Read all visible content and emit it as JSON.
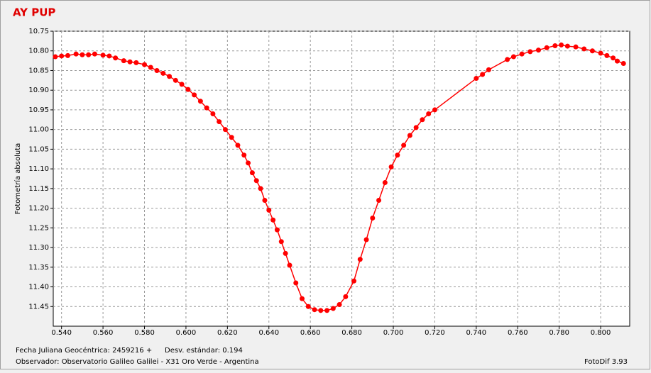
{
  "chart_data": {
    "type": "line",
    "title": "AY PUP",
    "y_label": "Fotometría absoluta",
    "footer_left_1": "Fecha Juliana Geocéntrica: 2459216 +",
    "footer_left_2": "Desv. estándar: 0.194",
    "footer_left_3": "Observador: Observatorio Galileo Galilei - X31 Oro Verde - Argentina",
    "footer_right": "FotoDif 3.93",
    "color": "#ff0000",
    "grid": true,
    "y_inverted": true,
    "xlim": [
      0.536,
      0.814
    ],
    "ylim": [
      10.75,
      11.5
    ],
    "xticks": [
      {
        "value": 0.54,
        "label": "0.540"
      },
      {
        "value": 0.56,
        "label": "0.560"
      },
      {
        "value": 0.58,
        "label": "0.580"
      },
      {
        "value": 0.6,
        "label": "0.600"
      },
      {
        "value": 0.62,
        "label": "0.620"
      },
      {
        "value": 0.64,
        "label": "0.640"
      },
      {
        "value": 0.66,
        "label": "0.660"
      },
      {
        "value": 0.68,
        "label": "0.680"
      },
      {
        "value": 0.7,
        "label": "0.700"
      },
      {
        "value": 0.72,
        "label": "0.720"
      },
      {
        "value": 0.74,
        "label": "0.740"
      },
      {
        "value": 0.76,
        "label": "0.760"
      },
      {
        "value": 0.78,
        "label": "0.780"
      },
      {
        "value": 0.8,
        "label": "0.800"
      }
    ],
    "yticks": [
      {
        "value": 10.75,
        "label": "10.75"
      },
      {
        "value": 10.8,
        "label": "10.80"
      },
      {
        "value": 10.85,
        "label": "10.85"
      },
      {
        "value": 10.9,
        "label": "10.90"
      },
      {
        "value": 10.95,
        "label": "10.95"
      },
      {
        "value": 11.0,
        "label": "11.00"
      },
      {
        "value": 11.05,
        "label": "11.05"
      },
      {
        "value": 11.1,
        "label": "11.10"
      },
      {
        "value": 11.15,
        "label": "11.15"
      },
      {
        "value": 11.2,
        "label": "11.20"
      },
      {
        "value": 11.25,
        "label": "11.25"
      },
      {
        "value": 11.3,
        "label": "11.30"
      },
      {
        "value": 11.35,
        "label": "11.35"
      },
      {
        "value": 11.4,
        "label": "11.40"
      },
      {
        "value": 11.45,
        "label": "11.45"
      }
    ],
    "x": [
      0.537,
      0.54,
      0.543,
      0.547,
      0.55,
      0.553,
      0.556,
      0.56,
      0.563,
      0.566,
      0.57,
      0.573,
      0.576,
      0.58,
      0.583,
      0.586,
      0.589,
      0.592,
      0.595,
      0.598,
      0.601,
      0.604,
      0.607,
      0.61,
      0.613,
      0.616,
      0.619,
      0.622,
      0.625,
      0.628,
      0.63,
      0.632,
      0.634,
      0.636,
      0.638,
      0.64,
      0.642,
      0.644,
      0.646,
      0.648,
      0.65,
      0.653,
      0.656,
      0.659,
      0.662,
      0.665,
      0.668,
      0.671,
      0.674,
      0.677,
      0.681,
      0.684,
      0.687,
      0.69,
      0.693,
      0.696,
      0.699,
      0.702,
      0.705,
      0.708,
      0.711,
      0.714,
      0.717,
      0.72,
      0.74,
      0.743,
      0.746,
      0.755,
      0.758,
      0.762,
      0.766,
      0.77,
      0.774,
      0.778,
      0.781,
      0.784,
      0.788,
      0.792,
      0.796,
      0.8,
      0.803,
      0.806,
      0.808,
      0.811
    ],
    "values": [
      10.815,
      10.813,
      10.812,
      10.808,
      10.81,
      10.81,
      10.808,
      10.811,
      10.813,
      10.818,
      10.825,
      10.828,
      10.83,
      10.835,
      10.842,
      10.85,
      10.857,
      10.865,
      10.875,
      10.885,
      10.898,
      10.912,
      10.928,
      10.945,
      10.96,
      10.98,
      11.0,
      11.02,
      11.04,
      11.065,
      11.085,
      11.11,
      11.13,
      11.15,
      11.18,
      11.205,
      11.23,
      11.255,
      11.285,
      11.315,
      11.345,
      11.39,
      11.43,
      11.45,
      11.458,
      11.46,
      11.46,
      11.455,
      11.445,
      11.425,
      11.385,
      11.33,
      11.28,
      11.225,
      11.18,
      11.135,
      11.095,
      11.065,
      11.04,
      11.015,
      10.995,
      10.975,
      10.96,
      10.95,
      10.87,
      10.86,
      10.848,
      10.822,
      10.815,
      10.808,
      10.802,
      10.798,
      10.792,
      10.787,
      10.785,
      10.788,
      10.79,
      10.795,
      10.8,
      10.806,
      10.812,
      10.818,
      10.826,
      10.832
    ]
  }
}
